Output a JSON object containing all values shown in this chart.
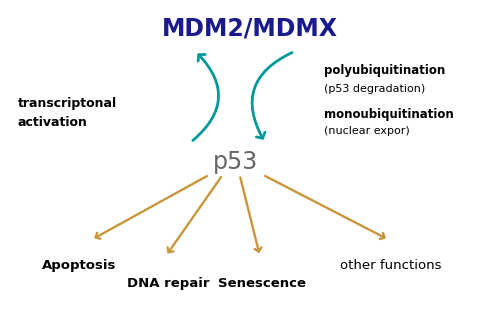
{
  "title": "MDM2/MDMX",
  "title_color": "#1a1a8c",
  "title_fontsize": 17,
  "title_fontweight": "bold",
  "p53_label": "p53",
  "p53_color": "#666666",
  "p53_fontsize": 17,
  "teal_color": "#009999",
  "gold_color": "#c8963c",
  "left_label_line1": "transcriptonal",
  "left_label_line2": "activation",
  "right_label1_bold": "polyubiquitination",
  "right_label1_normal": "(p53 degradation)",
  "right_label2_bold": "monoubiquitination",
  "right_label2_normal": "(nuclear expor)",
  "bottom_labels": [
    "Apoptosis",
    "DNA repair",
    "Senescence",
    "other functions"
  ],
  "figsize": [
    5.0,
    3.3
  ],
  "dpi": 100
}
